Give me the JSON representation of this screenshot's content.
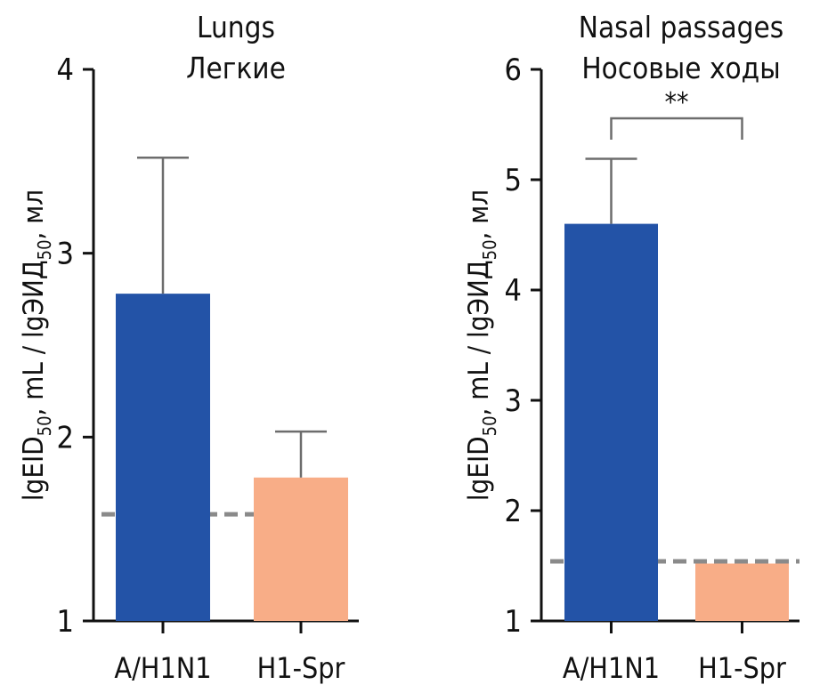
{
  "chart_data": [
    {
      "type": "bar",
      "title": "Lungs",
      "subtitle": "Легкие",
      "ylabel_parts": [
        "lgEID",
        "50",
        ", mL / lgЭИД",
        "50",
        ", мл"
      ],
      "categories": [
        "A/H1N1",
        "H1-Spr"
      ],
      "values": [
        2.78,
        1.78
      ],
      "error_upper": [
        3.52,
        2.03
      ],
      "bar_colors": [
        "#2353a7",
        "#f8ad87"
      ],
      "ylim": [
        1,
        4
      ],
      "yticks": [
        1,
        2,
        3,
        4
      ],
      "detection_limit": 1.58,
      "significance": null
    },
    {
      "type": "bar",
      "title": "Nasal passages",
      "subtitle": "Носовые ходы",
      "ylabel_parts": [
        "lgEID",
        "50",
        ", mL / lgЭИД",
        "50",
        ", мл"
      ],
      "categories": [
        "A/H1N1",
        "H1-Spr"
      ],
      "values": [
        4.6,
        1.52
      ],
      "error_upper": [
        5.19,
        null
      ],
      "bar_colors": [
        "#2353a7",
        "#f8ad87"
      ],
      "ylim": [
        1,
        6
      ],
      "yticks": [
        1,
        2,
        3,
        4,
        5,
        6
      ],
      "detection_limit": 1.54,
      "significance": "**"
    }
  ],
  "colors": {
    "axis": "#111111",
    "error_bar": "#6d6d6d",
    "limit_line": "#8a8a8a"
  }
}
